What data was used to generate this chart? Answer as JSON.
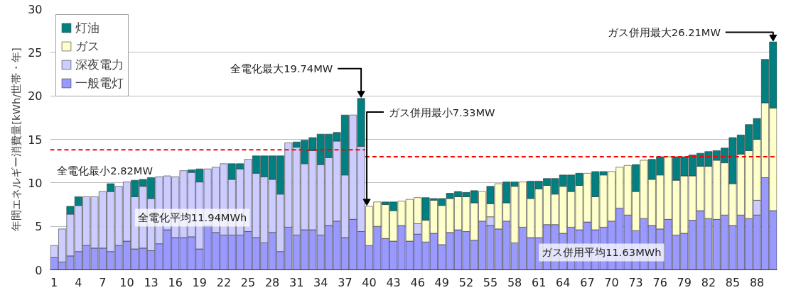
{
  "chart_data": {
    "type": "bar",
    "stacked": true,
    "ylabel": "年間エネルギー消費量[kWh/世帯・年]",
    "x": [
      1,
      2,
      3,
      4,
      5,
      6,
      7,
      8,
      9,
      10,
      11,
      12,
      13,
      14,
      15,
      16,
      17,
      18,
      19,
      20,
      21,
      22,
      23,
      24,
      25,
      26,
      27,
      28,
      29,
      30,
      31,
      32,
      33,
      34,
      35,
      36,
      37,
      38,
      39,
      40,
      41,
      42,
      43,
      44,
      45,
      46,
      47,
      48,
      49,
      50,
      51,
      52,
      53,
      54,
      55,
      56,
      57,
      58,
      59,
      60,
      61,
      62,
      63,
      64,
      65,
      66,
      67,
      68,
      69,
      70,
      71,
      72,
      73,
      74,
      75,
      76,
      77,
      78,
      79,
      80,
      81,
      82,
      83,
      84,
      85,
      86,
      87,
      88,
      89,
      90
    ],
    "xlim": [
      0.5,
      90.5
    ],
    "xticks": [
      1,
      4,
      7,
      10,
      13,
      16,
      19,
      22,
      25,
      28,
      31,
      34,
      37,
      40,
      43,
      46,
      49,
      52,
      55,
      58,
      61,
      64,
      67,
      70,
      73,
      76,
      79,
      82,
      85,
      88
    ],
    "ylim": [
      0,
      30
    ],
    "yticks": [
      0,
      5,
      10,
      15,
      20,
      25,
      30
    ],
    "grid": "y",
    "legend": "top left",
    "series": [
      {
        "name": "一般電灯",
        "color": "#9999ff",
        "values": [
          1.4,
          0.9,
          1.6,
          2.1,
          2.8,
          2.5,
          2.5,
          2.1,
          2.8,
          3.3,
          2.4,
          2.5,
          2.2,
          3.0,
          4.6,
          3.7,
          3.7,
          3.8,
          2.4,
          5.1,
          4.3,
          4.0,
          4.0,
          4.0,
          4.4,
          3.7,
          3.1,
          4.3,
          2.1,
          4.9,
          4.0,
          4.6,
          4.6,
          4.0,
          5.1,
          5.6,
          3.7,
          5.8,
          4.4,
          2.8,
          5.0,
          3.6,
          3.3,
          5.1,
          3.3,
          4.1,
          3.2,
          4.2,
          2.9,
          4.3,
          4.6,
          4.4,
          3.4,
          5.6,
          5.1,
          4.7,
          5.6,
          3.1,
          4.9,
          3.7,
          3.7,
          5.2,
          5.2,
          4.2,
          4.9,
          4.6,
          5.5,
          4.6,
          4.9,
          5.6,
          7.1,
          6.3,
          4.5,
          5.9,
          5.1,
          4.7,
          5.8,
          4.0,
          4.2,
          5.7,
          6.8,
          5.9,
          5.8,
          6.3,
          5.1,
          6.3,
          5.9,
          6.3,
          10.6,
          6.8
        ]
      },
      {
        "name": "深夜電力",
        "color": "#ccccff",
        "values": [
          1.4,
          3.8,
          4.8,
          5.3,
          5.6,
          5.9,
          6.5,
          6.9,
          6.8,
          6.8,
          6.0,
          7.1,
          6.0,
          7.7,
          6.2,
          7.0,
          7.7,
          7.4,
          7.7,
          6.5,
          7.5,
          8.2,
          6.4,
          7.6,
          8.3,
          7.4,
          7.6,
          6.1,
          6.6,
          9.7,
          10.1,
          7.6,
          9.1,
          8.1,
          7.8,
          9.2,
          7.2,
          12.0,
          9.8,
          null,
          null,
          null,
          null,
          null,
          null,
          1.2,
          null,
          null,
          null,
          null,
          null,
          null,
          null,
          null,
          1.0,
          null,
          null,
          null,
          null,
          null,
          null,
          null,
          null,
          null,
          null,
          null,
          null,
          null,
          null,
          null,
          null,
          null,
          null,
          null,
          null,
          null,
          null,
          null,
          null,
          null,
          null,
          null,
          null,
          null,
          null,
          null,
          null,
          1.7,
          null,
          null
        ]
      },
      {
        "name": "ガス",
        "color": "#ffffcc",
        "values": [
          null,
          null,
          null,
          null,
          null,
          null,
          null,
          null,
          null,
          null,
          null,
          null,
          null,
          null,
          null,
          null,
          null,
          null,
          null,
          null,
          null,
          null,
          null,
          null,
          null,
          null,
          null,
          null,
          null,
          null,
          null,
          null,
          null,
          null,
          null,
          null,
          null,
          null,
          null,
          4.5,
          2.8,
          3.9,
          3.5,
          2.8,
          4.8,
          3.0,
          2.5,
          3.8,
          4.5,
          3.9,
          3.8,
          4.0,
          4.3,
          3.4,
          1.5,
          5.2,
          2.1,
          6.5,
          5.2,
          4.5,
          5.6,
          4.5,
          3.5,
          5.4,
          4.1,
          5.1,
          5.6,
          3.8,
          6.0,
          5.7,
          4.7,
          5.7,
          4.5,
          6.7,
          5.3,
          6.2,
          7.2,
          6.3,
          6.6,
          5.1,
          5.1,
          6.0,
          6.8,
          6.0,
          4.8,
          7.0,
          7.8,
          7.0,
          8.6,
          11.8
        ]
      },
      {
        "name": "灯油",
        "color": "#008080",
        "values": [
          null,
          null,
          0.9,
          1.0,
          null,
          null,
          null,
          0.9,
          null,
          null,
          1.9,
          0.8,
          2.4,
          null,
          null,
          null,
          null,
          0.3,
          1.5,
          null,
          null,
          null,
          1.8,
          0.6,
          null,
          2.0,
          2.4,
          2.7,
          4.4,
          null,
          0.6,
          2.7,
          1.5,
          3.5,
          2.7,
          1.0,
          6.9,
          null,
          5.5,
          null,
          null,
          0.3,
          1.0,
          null,
          null,
          null,
          2.6,
          0.2,
          0.8,
          0.6,
          0.6,
          0.5,
          1.4,
          null,
          2.0,
          null,
          2.4,
          0.5,
          null,
          2.0,
          0.9,
          0.8,
          1.8,
          1.3,
          1.9,
          1.4,
          null,
          2.9,
          0.4,
          null,
          null,
          null,
          3.1,
          null,
          2.3,
          2.1,
          null,
          2.7,
          2.2,
          2.4,
          1.5,
          1.7,
          1.1,
          1.7,
          5.3,
          2.2,
          3.0,
          2.4,
          5.0,
          7.6
        ]
      },
      {
        "type": "line",
        "color": "#ff0000",
        "line_style": "dashed",
        "x": [
          0.5,
          39.5
        ],
        "values": [
          13.8,
          13.8
        ]
      },
      {
        "type": "line",
        "color": "#ff0000",
        "line_style": "dashed",
        "x": [
          39.5,
          90.5
        ],
        "values": [
          13.0,
          13.0
        ]
      }
    ],
    "annotations": [
      {
        "text": "全電化最大19.74MW",
        "x": 39,
        "y": 19.74
      },
      {
        "text": "ガス併用最小7.33MW",
        "x": 40,
        "y": 7.33
      },
      {
        "text": "ガス併用最大26.21MW",
        "x": 90,
        "y": 26.21
      },
      "全電化最小2.82MW",
      "全電化平均11.94MWh",
      "ガス併用平均11.63MWh"
    ]
  }
}
